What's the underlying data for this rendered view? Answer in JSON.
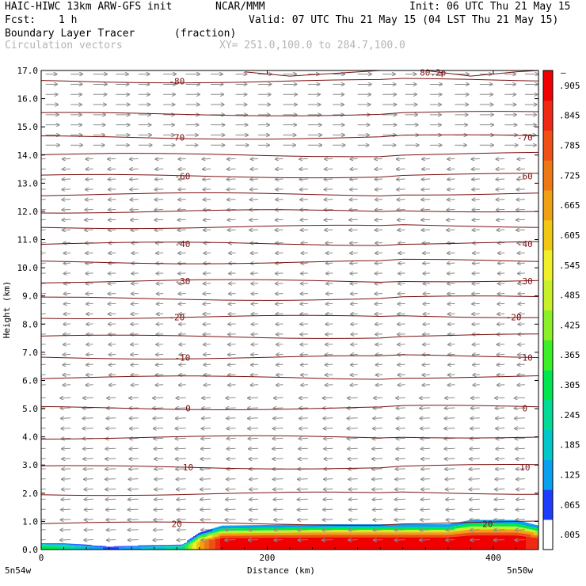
{
  "header": {
    "model": "HAIC-HIWC 13km ARW-GFS init",
    "org": "NCAR/MMM",
    "init": "Init: 06 UTC Thu 21 May 15",
    "fcst_label": "Fcst:",
    "fcst_value": "1 h",
    "valid": "Valid: 07 UTC Thu 21 May 15 (04 LST Thu 21 May 15)",
    "field": "Boundary Layer Tracer",
    "units": "(fraction)",
    "overlay": "Circulation vectors",
    "xy": "XY= 251.0,100.0 to 284.7,100.0"
  },
  "chart_data": {
    "type": "heatmap",
    "title": "Boundary Layer Tracer",
    "units": "(fraction)",
    "xlabel": "Distance (km)",
    "ylabel": "Height (km)",
    "xlim": [
      0,
      440
    ],
    "ylim": [
      0,
      17
    ],
    "x_ticks": [
      0,
      200,
      400
    ],
    "y_ticks": [
      "0.0",
      "1.0",
      "2.0",
      "3.0",
      "4.0",
      "5.0",
      "6.0",
      "7.0",
      "8.0",
      "9.0",
      "10.0",
      "11.0",
      "12.0",
      "13.0",
      "14.0",
      "15.0",
      "16.0",
      "17.0"
    ],
    "x_end_labels": {
      "left": "5n54w",
      "right": "5n50w"
    },
    "colorbar": {
      "ticks": [
        ".005",
        ".065",
        ".125",
        ".185",
        ".245",
        ".305",
        ".365",
        ".425",
        ".485",
        ".545",
        ".605",
        ".665",
        ".725",
        ".785",
        ".845",
        ".905"
      ],
      "top_tick": "–",
      "colors": [
        "#ffffff",
        "#1e3cff",
        "#0aa0f0",
        "#00c8c8",
        "#00dc96",
        "#00e650",
        "#3cf028",
        "#8cf028",
        "#c8f028",
        "#f0f028",
        "#f0c814",
        "#f0a014",
        "#f07814",
        "#f05014",
        "#f02814",
        "#f00000"
      ]
    },
    "tracer_region": [
      {
        "x": 0,
        "top": 0.25,
        "value": 0.35
      },
      {
        "x": 20,
        "top": 0.25,
        "value": 0.3
      },
      {
        "x": 60,
        "top": 0.15,
        "value": 0.1
      },
      {
        "x": 125,
        "top": 0.2,
        "value": 0.3
      },
      {
        "x": 140,
        "top": 0.6,
        "value": 0.7
      },
      {
        "x": 160,
        "top": 0.85,
        "value": 0.95
      },
      {
        "x": 250,
        "top": 0.9,
        "value": 0.97
      },
      {
        "x": 360,
        "top": 0.9,
        "value": 0.97
      },
      {
        "x": 380,
        "top": 1.05,
        "value": 0.97
      },
      {
        "x": 420,
        "top": 1.05,
        "value": 0.97
      },
      {
        "x": 440,
        "top": 0.85,
        "value": 0.9
      }
    ],
    "temperature_contours": [
      {
        "level": 20,
        "height": 0.92,
        "labels_at": [
          120,
          395
        ]
      },
      {
        "level": 10,
        "height": 2.92,
        "labels_at": [
          130,
          428
        ]
      },
      {
        "level": 0,
        "height": 5.02,
        "labels_at": [
          130,
          428
        ]
      },
      {
        "level": -10,
        "height": 6.82,
        "labels_at": [
          125,
          428
        ]
      },
      {
        "level": -20,
        "height": 8.25,
        "labels_at": [
          120,
          418
        ]
      },
      {
        "level": -30,
        "height": 9.52,
        "labels_at": [
          125,
          428
        ]
      },
      {
        "level": -40,
        "height": 10.85,
        "labels_at": [
          125,
          428
        ]
      },
      {
        "level": -60,
        "height": 13.25,
        "labels_at": [
          125,
          428
        ]
      },
      {
        "level": -70,
        "height": 14.62,
        "labels_at": [
          120,
          428
        ]
      },
      {
        "level": -80,
        "height": 16.62,
        "labels_at": [
          120
        ]
      }
    ],
    "contour_heights_unlabeled": [
      1.98,
      3.98,
      6.1,
      7.55,
      8.9,
      10.2,
      11.45,
      12.0,
      12.6,
      14.0,
      15.45
    ],
    "top_partial_label": "80.2p",
    "wind_vectors": {
      "columns_x": [
        4,
        26,
        46,
        66,
        86,
        108,
        128,
        150,
        172,
        192,
        214,
        236,
        258,
        280,
        302,
        322,
        344,
        366,
        388,
        410,
        428
      ],
      "bands": [
        {
          "from": 14.0,
          "to": 17.0,
          "direction": "east",
          "speed": 1.0
        },
        {
          "from": 11.0,
          "to": 14.0,
          "direction": "west",
          "speed": 0.45
        },
        {
          "from": 5.5,
          "to": 11.0,
          "direction": "west",
          "speed": 0.35
        },
        {
          "from": 0.0,
          "to": 5.5,
          "direction": "west",
          "speed": 0.65
        }
      ]
    }
  }
}
